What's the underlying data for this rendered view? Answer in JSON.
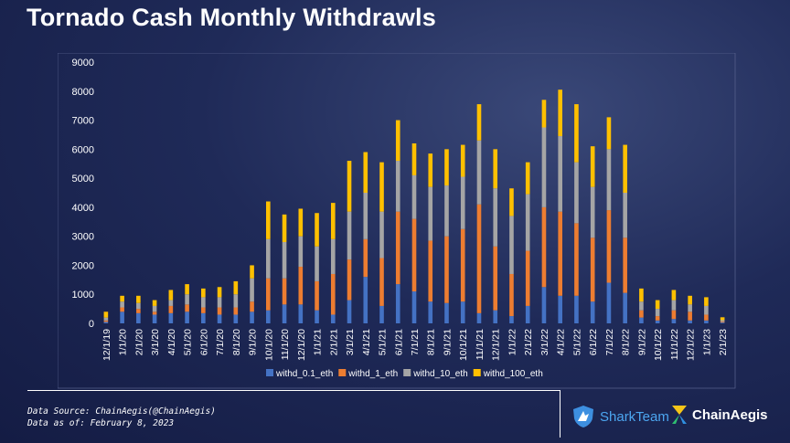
{
  "page": {
    "title": "Tornado Cash Monthly Withdrawls",
    "source_line": "Data Source: ChainAegis(@ChainAegis)",
    "date_line": "Data as of: February 8, 2023",
    "brand_shark": "SharkTeam",
    "brand_aegis": "ChainAegis"
  },
  "colors": {
    "withd_0.1_eth": "#4472c4",
    "withd_1_eth": "#ed7d31",
    "withd_10_eth": "#a5a5a5",
    "withd_100_eth": "#ffc000",
    "axis_text": "#ffffff"
  },
  "chart_data": {
    "type": "bar",
    "stacked": true,
    "title": "Tornado Cash Monthly Withdrawls",
    "ylim": [
      0,
      9000
    ],
    "yticks": [
      0,
      1000,
      2000,
      3000,
      4000,
      5000,
      6000,
      7000,
      8000,
      9000
    ],
    "legend_position": "bottom",
    "categories": [
      "12/1/19",
      "1/1/20",
      "2/1/20",
      "3/1/20",
      "4/1/20",
      "5/1/20",
      "6/1/20",
      "7/1/20",
      "8/1/20",
      "9/1/20",
      "10/1/20",
      "11/1/20",
      "12/1/20",
      "1/1/21",
      "2/1/21",
      "3/1/21",
      "4/1/21",
      "5/1/21",
      "6/1/21",
      "7/1/21",
      "8/1/21",
      "9/1/21",
      "10/1/21",
      "11/1/21",
      "12/1/21",
      "1/1/22",
      "2/1/22",
      "3/1/22",
      "4/1/22",
      "5/1/22",
      "6/1/22",
      "7/1/22",
      "8/1/22",
      "9/1/22",
      "10/1/22",
      "11/1/22",
      "12/1/22",
      "1/1/23",
      "2/1/23"
    ],
    "series": [
      {
        "name": "withd_0.1_eth",
        "values": [
          50,
          400,
          350,
          300,
          350,
          400,
          350,
          300,
          300,
          400,
          450,
          650,
          650,
          450,
          300,
          800,
          1600,
          600,
          1350,
          1100,
          750,
          700,
          750,
          350,
          450,
          250,
          600,
          1250,
          950,
          950,
          750,
          1400,
          1050,
          200,
          100,
          150,
          100,
          100,
          30
        ]
      },
      {
        "name": "withd_1_eth",
        "values": [
          50,
          150,
          150,
          100,
          250,
          250,
          200,
          250,
          250,
          350,
          1100,
          900,
          1300,
          1000,
          1400,
          1400,
          1300,
          1650,
          2500,
          2500,
          2100,
          2300,
          2500,
          3750,
          2200,
          1450,
          1900,
          2750,
          2900,
          2500,
          2200,
          2500,
          1900,
          250,
          150,
          300,
          300,
          200,
          30
        ]
      },
      {
        "name": "withd_10_eth",
        "values": [
          100,
          200,
          200,
          200,
          200,
          350,
          350,
          350,
          450,
          800,
          1350,
          1250,
          1050,
          1200,
          1200,
          1650,
          1600,
          1600,
          1750,
          1500,
          1850,
          1750,
          1800,
          2200,
          2000,
          2000,
          1950,
          2750,
          2600,
          2100,
          1750,
          2100,
          1550,
          300,
          250,
          350,
          250,
          300,
          50
        ]
      },
      {
        "name": "withd_100_eth",
        "values": [
          200,
          200,
          250,
          200,
          350,
          350,
          300,
          350,
          450,
          450,
          1300,
          950,
          950,
          1150,
          1250,
          1750,
          1400,
          1700,
          1400,
          1100,
          1150,
          1250,
          1100,
          1250,
          1350,
          950,
          1100,
          950,
          1600,
          2000,
          1400,
          1100,
          1650,
          450,
          300,
          350,
          300,
          300,
          100
        ]
      }
    ]
  }
}
